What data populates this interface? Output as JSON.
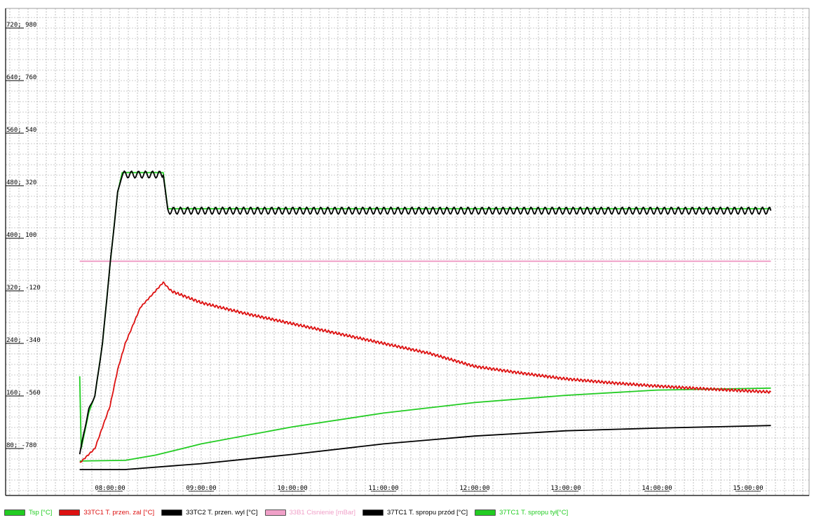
{
  "chart_data": {
    "type": "line",
    "title": "",
    "xlabel": "",
    "ylabel": "",
    "grid": true,
    "legend_position": "bottom",
    "x_range": [
      "07:40",
      "15:15"
    ],
    "y_range_primary": [
      40,
      760
    ],
    "x_ticks": [
      "08:00:00",
      "09:00:00",
      "10:00:00",
      "11:00:00",
      "12:00:00",
      "13:00:00",
      "14:00:00",
      "15:00:00"
    ],
    "y_ticks": [
      "80; -780",
      "160; -560",
      "240; -340",
      "320; -120",
      "400; 100",
      "480; 320",
      "560; 540",
      "640; 760",
      "720; 980"
    ],
    "series": [
      {
        "name": "Tsp [°C]",
        "color": "#22cc22",
        "points": [
          [
            "07:40",
            190
          ],
          [
            "07:41",
            80
          ],
          [
            "07:46",
            135
          ],
          [
            "07:50",
            160
          ],
          [
            "07:55",
            240
          ],
          [
            "08:00",
            360
          ],
          [
            "08:05",
            470
          ],
          [
            "08:08",
            500
          ],
          [
            "08:35",
            500
          ],
          [
            "08:38",
            445
          ],
          [
            "15:15",
            445
          ]
        ]
      },
      {
        "name": "33TC1 T. przen. zal [°C]",
        "color": "#dd1111",
        "oscillating": true,
        "points": [
          [
            "07:40",
            58
          ],
          [
            "07:50",
            80
          ],
          [
            "08:00",
            145
          ],
          [
            "08:05",
            200
          ],
          [
            "08:10",
            240
          ],
          [
            "08:20",
            295
          ],
          [
            "08:30",
            320
          ],
          [
            "08:35",
            333
          ],
          [
            "08:40",
            320
          ],
          [
            "09:00",
            302
          ],
          [
            "09:30",
            285
          ],
          [
            "10:00",
            270
          ],
          [
            "10:30",
            255
          ],
          [
            "11:00",
            240
          ],
          [
            "11:30",
            225
          ],
          [
            "12:00",
            205
          ],
          [
            "12:30",
            195
          ],
          [
            "13:00",
            186
          ],
          [
            "13:30",
            180
          ],
          [
            "14:00",
            175
          ],
          [
            "14:30",
            171
          ],
          [
            "15:15",
            166
          ]
        ]
      },
      {
        "name": "33TC2 T. przen. wyl [°C]",
        "color": "#000000",
        "oscillating": true,
        "points": [
          [
            "07:40",
            72
          ],
          [
            "07:46",
            140
          ],
          [
            "07:50",
            160
          ],
          [
            "07:55",
            240
          ],
          [
            "08:00",
            360
          ],
          [
            "08:05",
            470
          ],
          [
            "08:08",
            497
          ],
          [
            "08:35",
            497
          ],
          [
            "08:38",
            442
          ],
          [
            "15:15",
            442
          ]
        ]
      },
      {
        "name": "33B1 Cisnienie [mBar]",
        "color": "#f0a0c8",
        "points": [
          [
            "07:40",
            365
          ],
          [
            "15:15",
            365
          ]
        ]
      },
      {
        "name": "37TC1 T. spropu przód [°C]",
        "color": "#000000",
        "points": [
          [
            "07:40",
            48
          ],
          [
            "08:10",
            48
          ],
          [
            "09:00",
            57
          ],
          [
            "10:00",
            71
          ],
          [
            "11:00",
            87
          ],
          [
            "12:00",
            99
          ],
          [
            "13:00",
            107
          ],
          [
            "14:00",
            111
          ],
          [
            "15:15",
            115
          ]
        ]
      },
      {
        "name": "37TC1 T. spropu tył[°C]",
        "color": "#22cc22",
        "points": [
          [
            "07:40",
            61
          ],
          [
            "08:10",
            62
          ],
          [
            "08:30",
            70
          ],
          [
            "09:00",
            87
          ],
          [
            "10:00",
            113
          ],
          [
            "11:00",
            134
          ],
          [
            "12:00",
            150
          ],
          [
            "13:00",
            161
          ],
          [
            "14:00",
            169
          ],
          [
            "15:15",
            172
          ]
        ]
      }
    ]
  },
  "legend": [
    {
      "label": "Tsp [°C]",
      "color": "#22cc22",
      "text_color": "#22cc22"
    },
    {
      "label": "33TC1 T. przen. zal [°C]",
      "color": "#dd1111",
      "text_color": "#dd1111"
    },
    {
      "label": "33TC2 T. przen. wyl [°C]",
      "color": "#000000",
      "text_color": "#000000"
    },
    {
      "label": "33B1 Cisnienie [mBar]",
      "color": "#f0a0c8",
      "text_color": "#f0a0c8"
    },
    {
      "label": "37TC1 T. spropu przód [°C]",
      "color": "#000000",
      "text_color": "#000000"
    },
    {
      "label": "37TC1 T. spropu tył[°C]",
      "color": "#22cc22",
      "text_color": "#22cc22"
    }
  ]
}
